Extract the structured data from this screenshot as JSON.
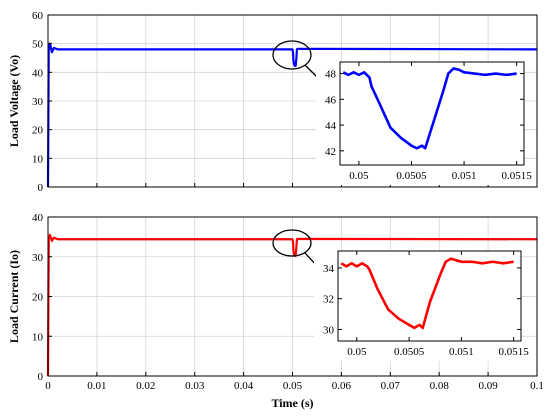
{
  "chart_data": [
    {
      "type": "line",
      "xlabel": "",
      "ylabel": "Load Voltage (Vo)",
      "xlim": [
        0,
        0.1
      ],
      "ylim": [
        0,
        60
      ],
      "xticks": [
        0,
        0.01,
        0.02,
        0.03,
        0.04,
        0.05,
        0.06,
        0.07,
        0.08,
        0.09,
        0.1
      ],
      "xtick_labels": [],
      "yticks": [
        0,
        10,
        20,
        30,
        40,
        50,
        60
      ],
      "grid": true,
      "color": "#0000ff",
      "series": [
        {
          "x": [
            0,
            0.00015,
            0.0004,
            0.0008,
            0.0012,
            0.002,
            0.05,
            0.0501,
            0.0502,
            0.05035,
            0.0505,
            0.05065,
            0.0508,
            0.0509,
            0.051,
            0.1
          ],
          "y": [
            0,
            48,
            50,
            47,
            48.5,
            48,
            48,
            47,
            44,
            42.6,
            42.2,
            42.3,
            45,
            48,
            48.2,
            48
          ]
        }
      ],
      "annotation": "ellipse around dip at x≈0.0505 with arrow to zoom inset",
      "inset": {
        "xlim": [
          0.04982,
          0.05157
        ],
        "ylim": [
          40.9,
          48.9
        ],
        "xticks": [
          0.05,
          0.0505,
          0.051,
          0.0515
        ],
        "xtick_labels": [
          "0.05",
          "0.0505",
          "0.051",
          "0.0515"
        ],
        "yticks": [
          42,
          44,
          46,
          48
        ],
        "x": [
          0.04985,
          0.0499,
          0.04995,
          0.05,
          0.05005,
          0.0501,
          0.05012,
          0.0502,
          0.0503,
          0.0504,
          0.0505,
          0.05055,
          0.0506,
          0.05063,
          0.0507,
          0.0508,
          0.05085,
          0.0509,
          0.05095,
          0.051,
          0.0511,
          0.0512,
          0.0513,
          0.0514,
          0.0515
        ],
        "y": [
          48.1,
          47.9,
          48.1,
          47.9,
          48.1,
          47.7,
          47.0,
          45.6,
          43.8,
          43.0,
          42.4,
          42.2,
          42.4,
          42.2,
          44.0,
          46.6,
          48.0,
          48.4,
          48.3,
          48.1,
          48.0,
          47.9,
          48.0,
          47.9,
          48.0
        ]
      }
    },
    {
      "type": "line",
      "xlabel": "Time (s)",
      "ylabel": "Load Current (Io)",
      "xlim": [
        0,
        0.1
      ],
      "ylim": [
        0,
        40
      ],
      "xticks": [
        0,
        0.01,
        0.02,
        0.03,
        0.04,
        0.05,
        0.06,
        0.07,
        0.08,
        0.09,
        0.1
      ],
      "xtick_labels": [
        "0",
        "0.01",
        "0.02",
        "0.03",
        "0.04",
        "0.05",
        "0.06",
        "0.07",
        "0.08",
        "0.09",
        "0.1"
      ],
      "yticks": [
        0,
        10,
        20,
        30,
        40
      ],
      "grid": true,
      "color": "#ff0000",
      "series": [
        {
          "x": [
            0,
            0.00015,
            0.0004,
            0.0008,
            0.0012,
            0.002,
            0.05,
            0.0501,
            0.0502,
            0.05035,
            0.0505,
            0.05065,
            0.0508,
            0.0509,
            0.051,
            0.1
          ],
          "y": [
            0,
            34.5,
            35.5,
            34,
            34.8,
            34.4,
            34.4,
            33.8,
            31.5,
            30.5,
            30.2,
            30.3,
            32.5,
            34.4,
            34.5,
            34.4
          ]
        }
      ],
      "annotation": "ellipse around dip at x≈0.0505 with arrow to zoom inset",
      "inset": {
        "xlim": [
          0.04982,
          0.05157
        ],
        "ylim": [
          29.25,
          35.1
        ],
        "xticks": [
          0.05,
          0.0505,
          0.051,
          0.0515
        ],
        "xtick_labels": [
          "0.05",
          "0.0505",
          "0.051",
          "0.0515"
        ],
        "yticks": [
          30,
          32,
          34
        ],
        "x": [
          0.04985,
          0.0499,
          0.04995,
          0.05,
          0.05005,
          0.0501,
          0.05012,
          0.0502,
          0.0503,
          0.0504,
          0.0505,
          0.05055,
          0.0506,
          0.05063,
          0.0507,
          0.0508,
          0.05085,
          0.0509,
          0.05095,
          0.051,
          0.0511,
          0.0512,
          0.0513,
          0.0514,
          0.0515
        ],
        "y": [
          34.3,
          34.1,
          34.3,
          34.1,
          34.3,
          34.1,
          33.9,
          32.6,
          31.3,
          30.7,
          30.3,
          30.1,
          30.3,
          30.1,
          31.8,
          33.6,
          34.4,
          34.6,
          34.5,
          34.4,
          34.4,
          34.3,
          34.4,
          34.3,
          34.4
        ]
      }
    }
  ]
}
